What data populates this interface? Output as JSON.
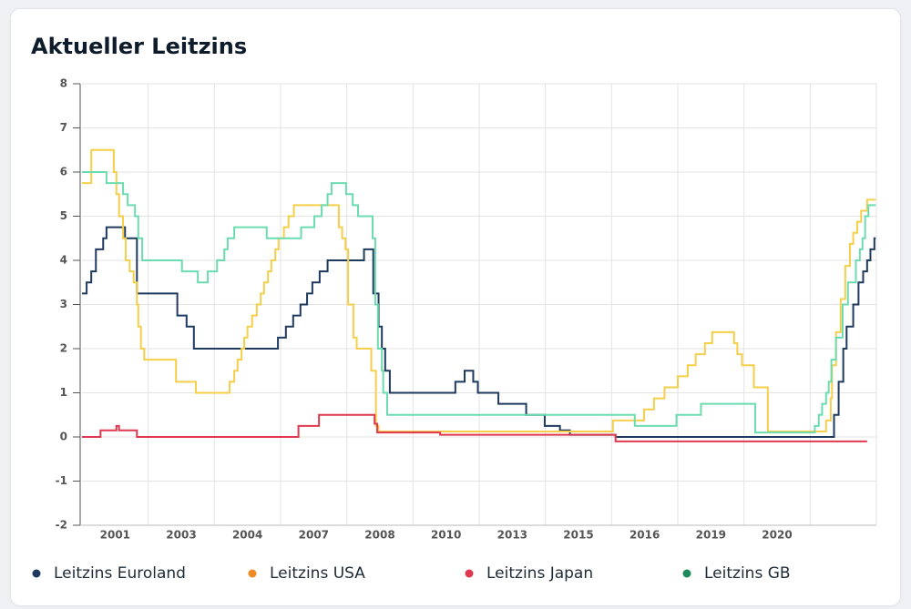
{
  "chart_data": {
    "type": "step-line",
    "title": "Aktueller Leitzins",
    "categories": [
      "2001",
      "2003",
      "2004",
      "2007",
      "2008",
      "2010",
      "2013",
      "2015",
      "2016",
      "2019",
      "2020",
      null
    ],
    "xlim": [
      0,
      12
    ],
    "ylim": [
      -2,
      8
    ],
    "yticks": [
      -2,
      -1,
      0,
      1,
      2,
      3,
      4,
      5,
      6,
      7,
      8
    ],
    "grid": true,
    "series": [
      {
        "name": "Leitzins Euroland",
        "color": "#1f3a5f",
        "legend_color": "#1f3a5f",
        "x": [
          0,
          0.07,
          0.14,
          0.21,
          0.32,
          0.37,
          0.65,
          0.83,
          1.44,
          1.58,
          1.69,
          2.96,
          3.08,
          3.19,
          3.3,
          3.4,
          3.48,
          3.59,
          3.71,
          4.26,
          4.4,
          4.48,
          4.53,
          4.58,
          4.65,
          5.64,
          5.78,
          5.91,
          5.98,
          6.29,
          6.71,
          6.99,
          7.22,
          7.37,
          8.06,
          11.36,
          11.43,
          11.5,
          11.55,
          11.65,
          11.73,
          11.8,
          11.86,
          11.91,
          11.97,
          11.99
        ],
        "values": [
          3.25,
          3.5,
          3.75,
          4.25,
          4.5,
          4.75,
          4.5,
          3.25,
          2.75,
          2.5,
          2.0,
          2.25,
          2.5,
          2.75,
          3.0,
          3.25,
          3.5,
          3.75,
          4.0,
          4.25,
          3.25,
          2.5,
          2.0,
          1.5,
          1.0,
          1.25,
          1.5,
          1.25,
          1.0,
          0.75,
          0.5,
          0.25,
          0.15,
          0.05,
          0,
          0.5,
          1.25,
          2.0,
          2.5,
          3.0,
          3.5,
          3.75,
          4.0,
          4.25,
          4.5,
          4.5
        ]
      },
      {
        "name": "Leitzins USA",
        "color": "#f5cf4a",
        "legend_color": "#f08a24",
        "x": [
          0,
          0.14,
          0.48,
          0.52,
          0.56,
          0.62,
          0.66,
          0.72,
          0.78,
          0.83,
          0.85,
          0.89,
          0.94,
          1.42,
          1.72,
          2.23,
          2.3,
          2.35,
          2.41,
          2.45,
          2.5,
          2.57,
          2.64,
          2.7,
          2.75,
          2.81,
          2.86,
          2.92,
          2.97,
          3.05,
          3.12,
          3.2,
          3.88,
          3.93,
          3.98,
          4.02,
          4.1,
          4.15,
          4.37,
          4.44,
          4.48,
          8.02,
          8.49,
          8.64,
          8.8,
          9.0,
          9.15,
          9.27,
          9.41,
          9.52,
          9.85,
          9.9,
          9.97,
          10.15,
          10.36,
          11.24,
          11.31,
          11.33,
          11.39,
          11.46,
          11.53,
          11.6,
          11.65,
          11.71,
          11.77,
          11.86,
          11.99
        ],
        "values": [
          5.75,
          6.5,
          6.0,
          5.5,
          5.0,
          4.5,
          4.0,
          3.75,
          3.5,
          3.0,
          2.5,
          2.0,
          1.75,
          1.25,
          1.0,
          1.25,
          1.5,
          1.75,
          2.0,
          2.25,
          2.5,
          2.75,
          3.0,
          3.25,
          3.5,
          3.75,
          4.0,
          4.25,
          4.5,
          4.75,
          5.0,
          5.25,
          4.75,
          4.5,
          4.25,
          3.0,
          2.25,
          2.0,
          1.5,
          0.25,
          0.125,
          0.375,
          0.625,
          0.875,
          1.125,
          1.375,
          1.625,
          1.875,
          2.125,
          2.375,
          2.125,
          1.875,
          1.625,
          1.125,
          0.125,
          0.375,
          0.875,
          1.625,
          2.375,
          3.125,
          3.875,
          4.375,
          4.625,
          4.875,
          5.125,
          5.375,
          5.375
        ]
      },
      {
        "name": "Leitzins Japan",
        "color": "#e0384f",
        "legend_color": "#e0384f",
        "x": [
          0,
          0.28,
          0.52,
          0.56,
          0.83,
          3.27,
          3.58,
          4.42,
          4.46,
          5.41,
          8.06,
          11.86
        ],
        "values": [
          0,
          0.15,
          0.25,
          0.15,
          0,
          0.25,
          0.5,
          0.3,
          0.1,
          0.05,
          -0.1,
          -0.1
        ]
      },
      {
        "name": "Leitzins GB",
        "color": "#6ddbb0",
        "legend_color": "#1f8a5c",
        "x": [
          0,
          0.37,
          0.62,
          0.69,
          0.8,
          0.85,
          0.91,
          1.51,
          1.75,
          1.9,
          2.04,
          2.15,
          2.2,
          2.3,
          2.79,
          3.31,
          3.51,
          3.62,
          3.71,
          3.77,
          3.99,
          4.09,
          4.17,
          4.39,
          4.43,
          4.47,
          4.53,
          4.55,
          4.61,
          8.35,
          8.98,
          9.35,
          10.17,
          11.07,
          11.13,
          11.18,
          11.24,
          11.28,
          11.32,
          11.39,
          11.49,
          11.57,
          11.69,
          11.75,
          11.79,
          11.83,
          11.88,
          11.99
        ],
        "values": [
          6.0,
          5.75,
          5.5,
          5.25,
          5.0,
          4.5,
          4.0,
          3.75,
          3.5,
          3.75,
          4.0,
          4.25,
          4.5,
          4.75,
          4.5,
          4.75,
          5.0,
          5.25,
          5.5,
          5.75,
          5.5,
          5.25,
          5.0,
          4.5,
          3.0,
          2.0,
          1.5,
          1.0,
          0.5,
          0.25,
          0.5,
          0.75,
          0.1,
          0.25,
          0.5,
          0.75,
          1.0,
          1.25,
          1.75,
          2.25,
          3.0,
          3.5,
          4.0,
          4.25,
          4.5,
          5.0,
          5.25,
          5.25
        ]
      }
    ]
  }
}
